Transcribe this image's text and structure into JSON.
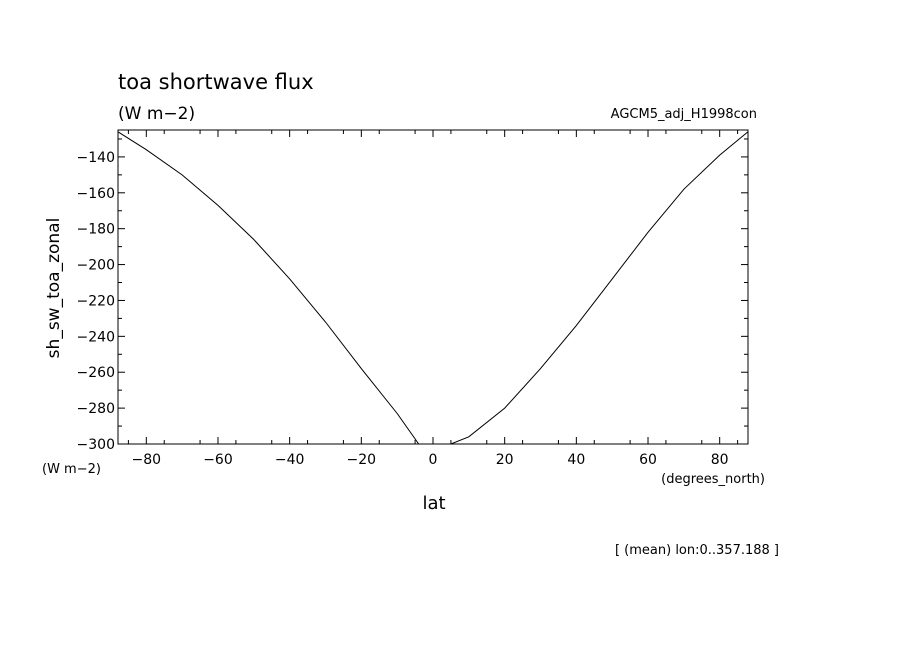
{
  "chart_data": {
    "type": "line",
    "title": "toa shortwave flux",
    "subtitle": "(W m−2)",
    "dataset_label": "AGCM5_adj_H1998con",
    "xlabel": "lat",
    "x_unit": "(degrees_north)",
    "ylabel": "sh_sw_toa_zonal",
    "y_unit": "(W m−2)",
    "footnote": "[ (mean) lon:0..357.188 ]",
    "xlim": [
      -87.9,
      87.9
    ],
    "ylim": [
      -300,
      -125
    ],
    "x_ticks": [
      -80,
      -60,
      -40,
      -20,
      0,
      20,
      40,
      60,
      80
    ],
    "x_tick_labels": [
      "−80",
      "−60",
      "−40",
      "−20",
      "0",
      "20",
      "40",
      "60",
      "80"
    ],
    "y_ticks": [
      -140,
      -160,
      -180,
      -200,
      -220,
      -240,
      -260,
      -280,
      -300
    ],
    "y_tick_labels": [
      "−140",
      "−160",
      "−180",
      "−200",
      "−220",
      "−240",
      "−260",
      "−280",
      "−300"
    ],
    "grid": false,
    "series": [
      {
        "x": [
          -87.9,
          -80,
          -70,
          -60,
          -50,
          -40,
          -30,
          -20,
          -10,
          -4,
          5,
          10,
          20,
          30,
          40,
          50,
          60,
          70,
          80,
          87.9
        ],
        "y": [
          -126,
          -136,
          -150,
          -167,
          -186,
          -208,
          -232,
          -258,
          -283,
          -300,
          -300,
          -296,
          -280,
          -258,
          -234,
          -208,
          -182,
          -158,
          -139,
          -126
        ]
      }
    ]
  }
}
